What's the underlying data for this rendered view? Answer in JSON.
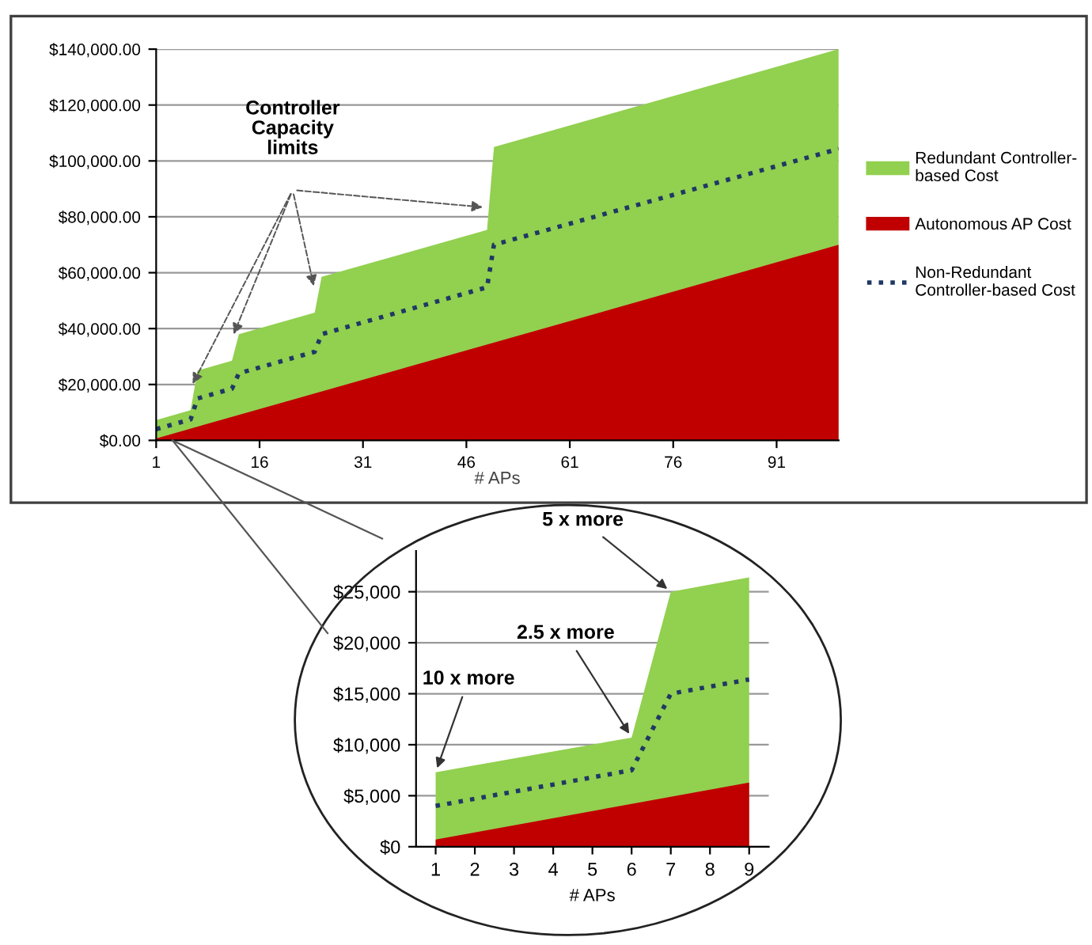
{
  "chart_data": [
    {
      "type": "area",
      "xlabel": "# APs",
      "xlim": [
        1,
        100
      ],
      "xticks": [
        1,
        16,
        31,
        46,
        61,
        76,
        91
      ],
      "ylim": [
        0,
        140000
      ],
      "yticks": [
        {
          "value": 0,
          "label": "$0.00"
        },
        {
          "value": 20000,
          "label": "$20,000.00"
        },
        {
          "value": 40000,
          "label": "$40,000.00"
        },
        {
          "value": 60000,
          "label": "$60,000.00"
        },
        {
          "value": 80000,
          "label": "$80,000.00"
        },
        {
          "value": 100000,
          "label": "$100,000.00"
        },
        {
          "value": 120000,
          "label": "$120,000.00"
        },
        {
          "value": 140000,
          "label": "$140,000.00"
        }
      ],
      "grid": "y",
      "legend": "right",
      "series": [
        {
          "name": "Redundant Controller-based Cost",
          "color": "#92d050",
          "x": [
            1,
            6,
            7,
            12,
            13,
            24,
            25,
            49,
            50,
            100
          ],
          "values": [
            7300,
            10800,
            25000,
            28500,
            38000,
            45700,
            58500,
            75300,
            105000,
            140000
          ]
        },
        {
          "name": "Autonomous AP Cost",
          "color": "#c00000",
          "x": [
            1,
            100
          ],
          "values": [
            700,
            70000
          ]
        },
        {
          "name": "Non-Redundant Controller-based Cost",
          "type": "line",
          "line_style": "dotted",
          "color": "#1f3864",
          "x": [
            1,
            6,
            7,
            12,
            13,
            24,
            25,
            49,
            50,
            100
          ],
          "values": [
            4000,
            7500,
            15000,
            18500,
            24000,
            31700,
            38000,
            54800,
            70000,
            104300
          ]
        }
      ],
      "annotations": [
        "Controller\nCapacity\nlimits"
      ]
    },
    {
      "type": "area",
      "xlabel": "# APs",
      "xlim": [
        0.5,
        9.5
      ],
      "xticks": [
        1,
        2,
        3,
        4,
        5,
        6,
        7,
        8,
        9
      ],
      "ylim": [
        0,
        29000
      ],
      "yticks": [
        {
          "value": 0,
          "label": "$0"
        },
        {
          "value": 5000,
          "label": "$5,000"
        },
        {
          "value": 10000,
          "label": "$10,000"
        },
        {
          "value": 15000,
          "label": "$15,000"
        },
        {
          "value": 20000,
          "label": "$20,000"
        },
        {
          "value": 25000,
          "label": "$25,000"
        }
      ],
      "grid": "y",
      "legend": false,
      "series": [
        {
          "color": "#92d050",
          "x": [
            1,
            6,
            7,
            9
          ],
          "values": [
            7300,
            10700,
            25000,
            26400
          ]
        },
        {
          "color": "#c00000",
          "x": [
            1,
            9
          ],
          "values": [
            700,
            6300
          ]
        },
        {
          "type": "line",
          "line_style": "dotted",
          "color": "#1f3864",
          "x": [
            1,
            6,
            7,
            9
          ],
          "values": [
            4000,
            7500,
            15000,
            16400
          ]
        }
      ],
      "annotations": [
        {
          "text": "10 x more",
          "x": 1,
          "y": 7300
        },
        {
          "text": "2.5 x more",
          "x": 6,
          "y": 10700
        },
        {
          "text": "5 x more",
          "x": 7,
          "y": 25000
        }
      ]
    }
  ]
}
